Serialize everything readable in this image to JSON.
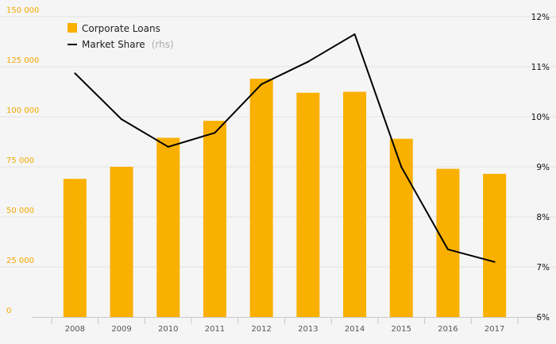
{
  "chart_data": {
    "type": "bar",
    "categories": [
      "2008",
      "2009",
      "2010",
      "2011",
      "2012",
      "2013",
      "2014",
      "2015",
      "2016",
      "2017"
    ],
    "series": [
      {
        "name": "Corporate Loans",
        "type": "bar",
        "axis": "left",
        "color": "#f9b000",
        "values": [
          69000,
          75000,
          89500,
          98000,
          119000,
          112000,
          112500,
          89000,
          74000,
          71500
        ]
      },
      {
        "name": "Market Share",
        "note": "(rhs)",
        "type": "line",
        "axis": "right",
        "color": "#000000",
        "values": [
          10.87,
          9.95,
          9.4,
          9.68,
          10.65,
          11.1,
          11.65,
          9.0,
          7.35,
          7.1
        ]
      }
    ],
    "y_left": {
      "ylim": [
        0,
        150000
      ],
      "ticks": [
        {
          "value": 0,
          "label": "0"
        },
        {
          "value": 25000,
          "label": "25 000"
        },
        {
          "value": 50000,
          "label": "50 000"
        },
        {
          "value": 75000,
          "label": "75 000"
        },
        {
          "value": 100000,
          "label": "100 000"
        },
        {
          "value": 125000,
          "label": "125 000"
        },
        {
          "value": 150000,
          "label": "150 000"
        }
      ],
      "color": "#f5a800"
    },
    "y_right": {
      "ylim": [
        6,
        12
      ],
      "ticks": [
        {
          "value": 6,
          "label": "6%"
        },
        {
          "value": 7,
          "label": "7%"
        },
        {
          "value": 8,
          "label": "8%"
        },
        {
          "value": 9,
          "label": "9%"
        },
        {
          "value": 10,
          "label": "10%"
        },
        {
          "value": 11,
          "label": "11%"
        },
        {
          "value": 12,
          "label": "12%"
        }
      ]
    },
    "grid": true,
    "legend_position": "top-left",
    "xlabel": "",
    "ylabel": ""
  }
}
